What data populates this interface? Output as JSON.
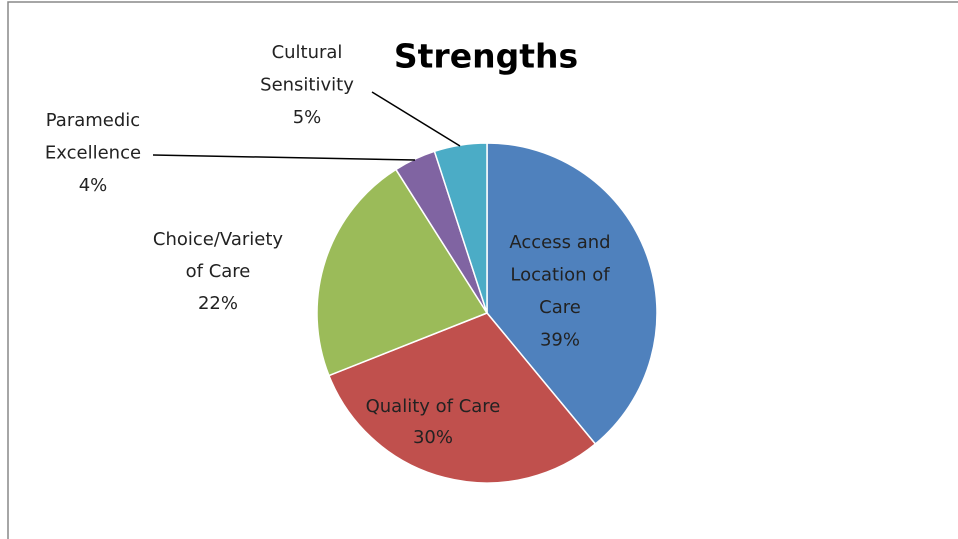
{
  "chart_data": {
    "type": "pie",
    "title": "Strengths",
    "categories": [
      [
        "Access and",
        "Location of",
        "Care"
      ],
      [
        "Quality of Care"
      ],
      [
        "Choice/Variety",
        "of Care"
      ],
      [
        "Paramedic",
        "Excellence"
      ],
      [
        "Cultural",
        "Sensitivity"
      ]
    ],
    "values": [
      39,
      30,
      22,
      4,
      5
    ],
    "value_labels": [
      "39%",
      "30%",
      "22%",
      "4%",
      "5%"
    ],
    "colors": [
      "#4f81bd",
      "#c0504d",
      "#9bbb59",
      "#8064a2",
      "#4bacc6"
    ]
  }
}
